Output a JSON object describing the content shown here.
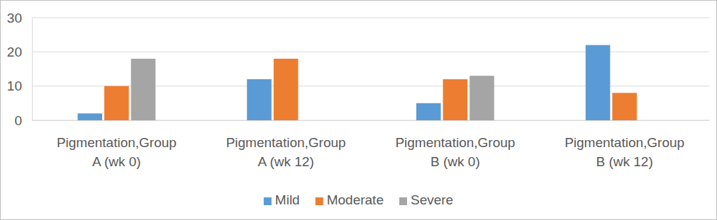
{
  "chart_data": {
    "type": "bar",
    "categories": [
      "Pigmentation,Group A (wk 0)",
      "Pigmentation,Group A (wk 12)",
      "Pigmentation,Group B (wk 0)",
      "Pigmentation,Group B (wk 12)"
    ],
    "series": [
      {
        "name": "Mild",
        "color": "#5b9bd5",
        "values": [
          2,
          12,
          5,
          22
        ]
      },
      {
        "name": "Moderate",
        "color": "#ed7d31",
        "values": [
          10,
          18,
          12,
          8
        ]
      },
      {
        "name": "Severe",
        "color": "#a5a5a5",
        "values": [
          18,
          0,
          13,
          0
        ]
      }
    ],
    "ylim": [
      0,
      30
    ],
    "yticks": [
      0,
      10,
      20,
      30
    ],
    "grid": true,
    "legend": "bottom"
  }
}
